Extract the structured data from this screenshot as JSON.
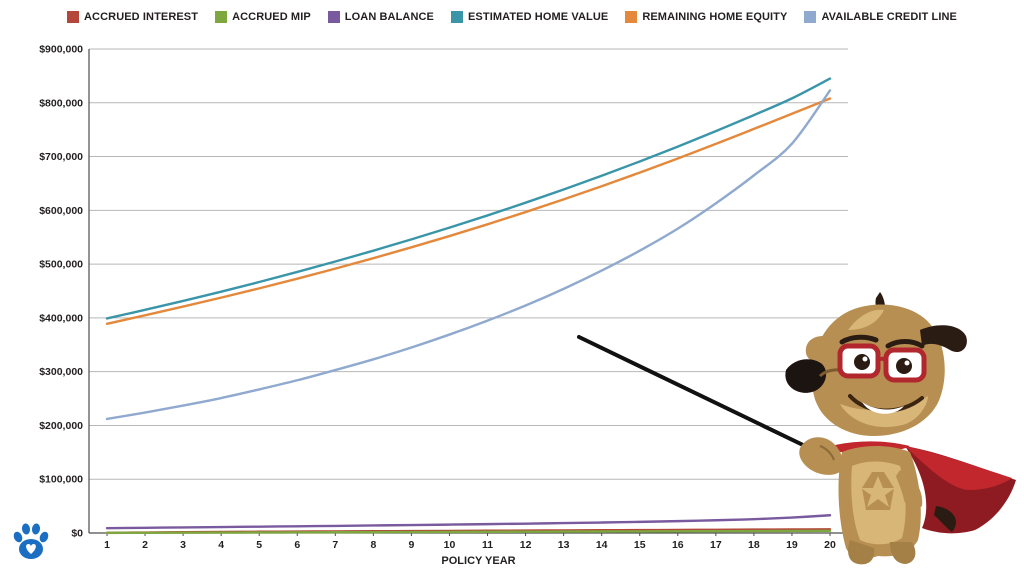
{
  "chart_data": {
    "type": "line",
    "title": "",
    "xlabel": "POLICY YEAR",
    "ylabel": "",
    "x": [
      1,
      2,
      3,
      4,
      5,
      6,
      7,
      8,
      9,
      10,
      11,
      12,
      13,
      14,
      15,
      16,
      17,
      18,
      19,
      20
    ],
    "x_tick_labels": [
      "1",
      "2",
      "3",
      "4",
      "5",
      "6",
      "7",
      "8",
      "9",
      "10",
      "11",
      "12",
      "13",
      "14",
      "15",
      "16",
      "17",
      "18",
      "19",
      "20"
    ],
    "ylim": [
      0,
      900000
    ],
    "y_ticks": [
      0,
      100000,
      200000,
      300000,
      400000,
      500000,
      600000,
      700000,
      800000,
      900000
    ],
    "y_tick_labels": [
      "$0",
      "$100,000",
      "$200,000",
      "$300,000",
      "$400,000",
      "$500,000",
      "$600,000",
      "$700,000",
      "$800,000",
      "$900,000"
    ],
    "grid": true,
    "legend_position": "top",
    "series": [
      {
        "name": "ACCRUED INTEREST",
        "color": "#b5463a",
        "values": [
          400,
          900,
          1400,
          1900,
          2300,
          2700,
          3000,
          3300,
          3600,
          3900,
          4200,
          4500,
          4800,
          5100,
          5400,
          5700,
          6000,
          6300,
          6600,
          6900
        ]
      },
      {
        "name": "ACCRUED MIP",
        "color": "#7ea83f",
        "values": [
          200,
          400,
          600,
          800,
          1000,
          1200,
          1400,
          1600,
          1800,
          2000,
          2200,
          2400,
          2600,
          2800,
          3000,
          3200,
          3400,
          3600,
          3800,
          4000
        ]
      },
      {
        "name": "LOAN BALANCE",
        "color": "#7a5a9e",
        "values": [
          9000,
          9700,
          10400,
          11100,
          11800,
          12500,
          13200,
          14000,
          14800,
          15600,
          16500,
          17400,
          18400,
          19500,
          20700,
          22100,
          23700,
          25700,
          28700,
          33000
        ]
      },
      {
        "name": "ESTIMATED HOME VALUE",
        "color": "#3a95a9",
        "values": [
          399000,
          415000,
          431500,
          448800,
          466700,
          485400,
          504800,
          525000,
          546000,
          567800,
          590500,
          614200,
          638700,
          664300,
          690900,
          718500,
          747200,
          777100,
          808200,
          845000
        ]
      },
      {
        "name": "REMAINING HOME EQUITY",
        "color": "#e4883b",
        "values": [
          389000,
          404800,
          421100,
          437700,
          454900,
          472900,
          491600,
          511000,
          531200,
          552200,
          574000,
          596800,
          620300,
          644800,
          670200,
          696400,
          723500,
          751400,
          779500,
          808000
        ]
      },
      {
        "name": "AVAILABLE CREDIT LINE",
        "color": "#8fa9cf",
        "values": [
          212000,
          224000,
          237000,
          251000,
          267000,
          284000,
          303000,
          323000,
          345000,
          369000,
          395000,
          423000,
          454000,
          488000,
          525000,
          566000,
          613000,
          665000,
          724000,
          823000
        ]
      }
    ]
  }
}
